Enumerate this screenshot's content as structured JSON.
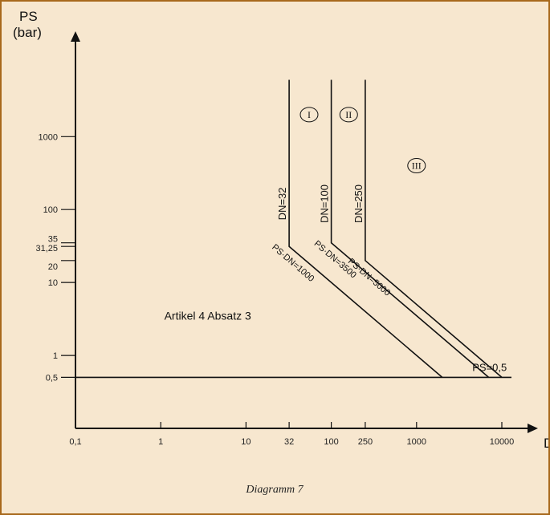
{
  "chart_data": {
    "type": "line",
    "caption": "Diagramm 7",
    "x_axis": {
      "label": "DN",
      "scale": "log",
      "range": [
        0.1,
        20000
      ],
      "ticks": [
        {
          "value": 0.1,
          "label": "0,1"
        },
        {
          "value": 1,
          "label": "1"
        },
        {
          "value": 10,
          "label": "10"
        },
        {
          "value": 32,
          "label": "32"
        },
        {
          "value": 100,
          "label": "100"
        },
        {
          "value": 250,
          "label": "250"
        },
        {
          "value": 1000,
          "label": "1000"
        },
        {
          "value": 10000,
          "label": "10000"
        }
      ]
    },
    "y_axis": {
      "label_line1": "PS",
      "label_line2": "(bar)",
      "scale": "log",
      "range": [
        0.1,
        20000
      ],
      "ticks": [
        {
          "value": 0.5,
          "label": "0,5"
        },
        {
          "value": 1,
          "label": "1"
        },
        {
          "value": 10,
          "label": "10"
        },
        {
          "value": 20,
          "label": "20"
        },
        {
          "value": 31.25,
          "label": "31,25"
        },
        {
          "value": 35,
          "label": "35"
        },
        {
          "value": 100,
          "label": "100"
        },
        {
          "value": 1000,
          "label": "1000"
        }
      ]
    },
    "boundaries": [
      {
        "vertical_label": "DN=32",
        "slope_label": "PS·DN=1000",
        "points": [
          [
            32,
            6000
          ],
          [
            32,
            31.25
          ],
          [
            2000,
            0.5
          ]
        ]
      },
      {
        "vertical_label": "DN=100",
        "slope_label": "PS·DN=3500",
        "points": [
          [
            100,
            6000
          ],
          [
            100,
            35
          ],
          [
            7000,
            0.5
          ]
        ]
      },
      {
        "vertical_label": "DN=250",
        "slope_label": "PS·DN=5000",
        "points": [
          [
            250,
            6000
          ],
          [
            250,
            20
          ],
          [
            10000,
            0.5
          ]
        ]
      }
    ],
    "horizontal_line": {
      "label": "PS=0,5",
      "y": 0.5
    },
    "regions": [
      {
        "label": "I",
        "x": 55,
        "y": 2000
      },
      {
        "label": "II",
        "x": 160,
        "y": 2000
      },
      {
        "label": "III",
        "x": 1000,
        "y": 400
      }
    ],
    "annotation": {
      "text": "Artikel 4 Absatz 3",
      "x": 1.1,
      "y": 3.1
    }
  }
}
